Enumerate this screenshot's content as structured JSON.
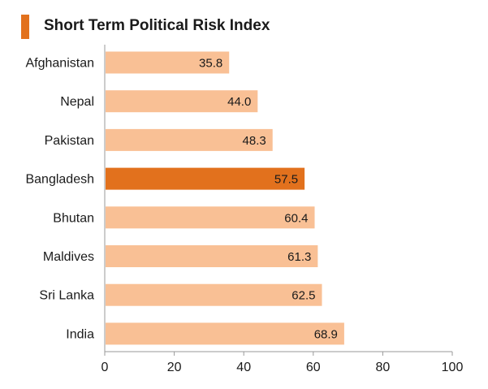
{
  "chart_data": {
    "type": "bar",
    "orientation": "horizontal",
    "title": "Short Term Political Risk Index",
    "categories": [
      "Afghanistan",
      "Nepal",
      "Pakistan",
      "Bangladesh",
      "Bhutan",
      "Maldives",
      "Sri Lanka",
      "India"
    ],
    "values": [
      35.8,
      44.0,
      48.3,
      57.5,
      60.4,
      61.3,
      62.5,
      68.9
    ],
    "value_labels": [
      "35.8",
      "44.0",
      "48.3",
      "57.5",
      "60.4",
      "61.3",
      "62.5",
      "68.9"
    ],
    "highlight": "Bangladesh",
    "xlim": [
      0,
      100
    ],
    "xticks": [
      0,
      20,
      40,
      60,
      80,
      100
    ],
    "xlabel": "",
    "ylabel": "",
    "grid": false,
    "colors": {
      "bar": "#f9c095",
      "highlight_bar": "#e2711d",
      "title_marker": "#e2711d",
      "axis": "#999999"
    }
  }
}
